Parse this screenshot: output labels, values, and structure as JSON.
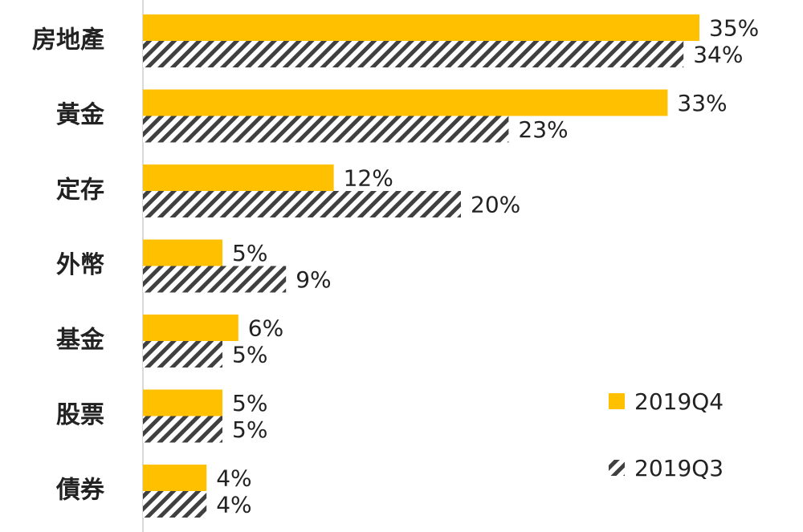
{
  "chart_data": {
    "type": "bar",
    "orientation": "horizontal",
    "categories": [
      "房地產",
      "黃金",
      "定存",
      "外幣",
      "基金",
      "股票",
      "債券"
    ],
    "series": [
      {
        "name": "2019Q4",
        "color": "#ffc000",
        "values": [
          35,
          33,
          12,
          5,
          6,
          5,
          4
        ],
        "value_labels": [
          "35%",
          "33%",
          "12%",
          "5%",
          "6%",
          "5%",
          "4%"
        ]
      },
      {
        "name": "2019Q3",
        "color": "#404040",
        "pattern": "hatch",
        "values": [
          34,
          23,
          20,
          9,
          5,
          5,
          4
        ],
        "value_labels": [
          "34%",
          "23%",
          "20%",
          "9%",
          "5%",
          "5%",
          "4%"
        ]
      }
    ],
    "xlim": [
      0,
      35
    ],
    "legend": "bottom-right",
    "highlight_label_color": "#e8262b"
  }
}
